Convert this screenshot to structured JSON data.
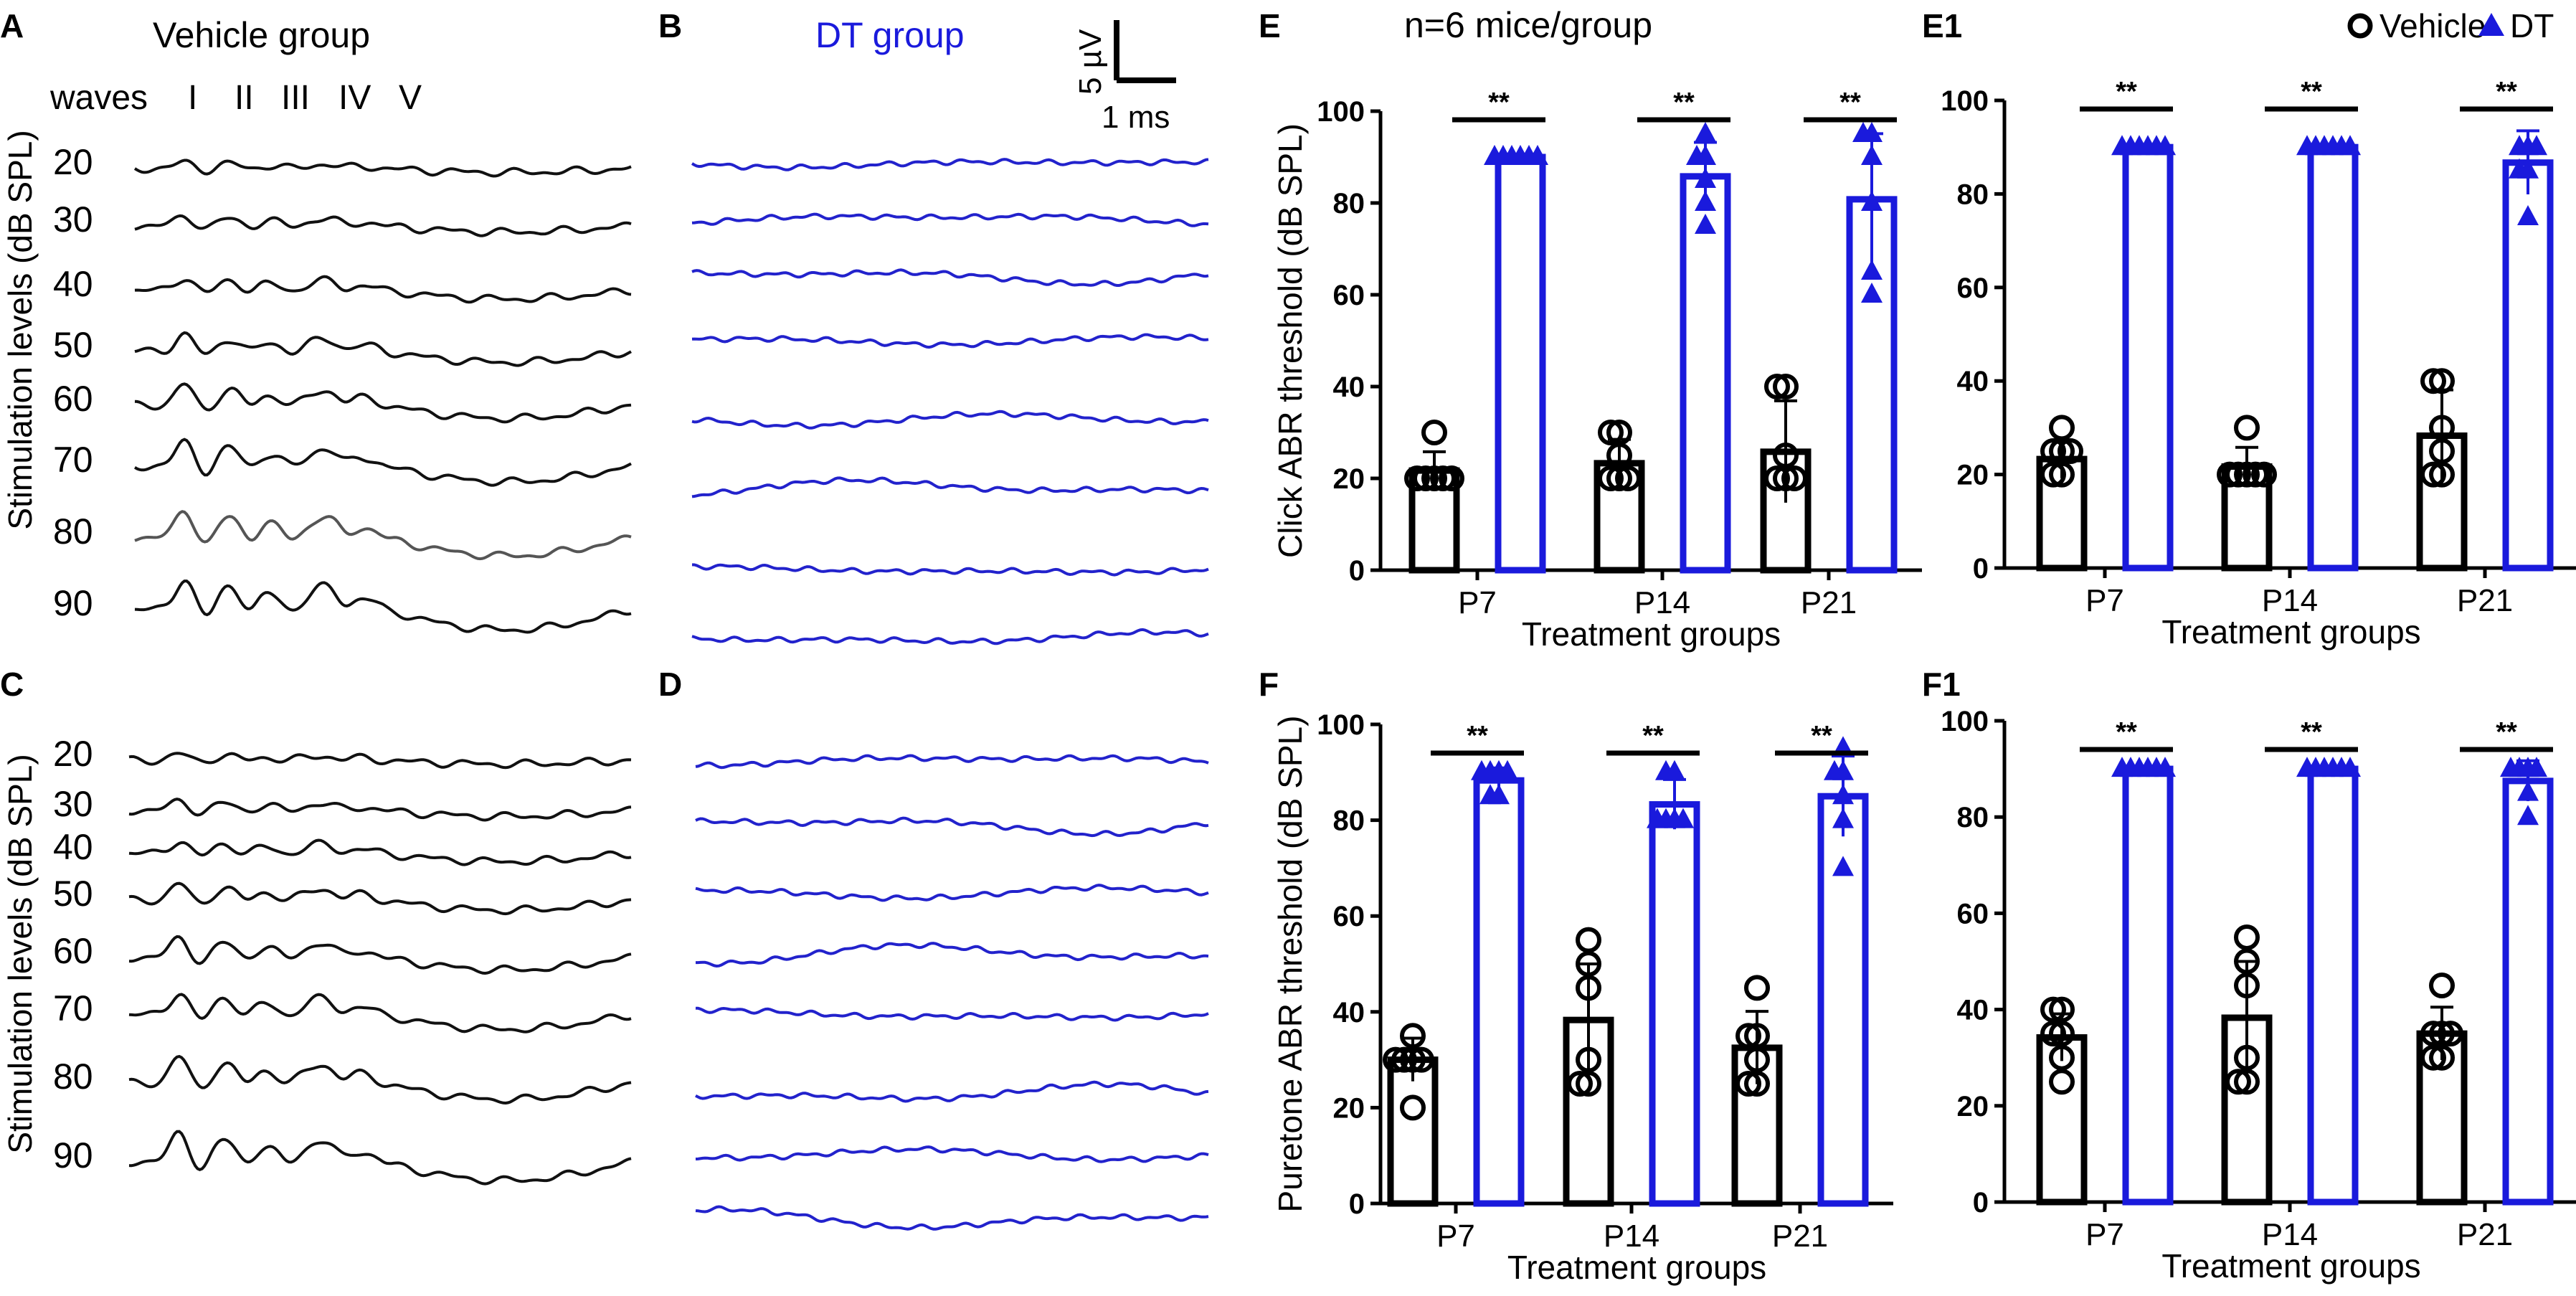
{
  "panel_labels": {
    "A": "A",
    "B": "B",
    "C": "C",
    "D": "D",
    "E": "E",
    "E1": "E1",
    "F": "F",
    "F1": "F1"
  },
  "traces": {
    "vehicle_title": "Vehicle group",
    "dt_title": "DT group",
    "waves_label": "waves",
    "waves": [
      "I",
      "II",
      "III",
      "IV",
      "V"
    ],
    "levels": [
      "20",
      "30",
      "40",
      "50",
      "60",
      "70",
      "80",
      "90"
    ],
    "ylabel": "Stimulation levels (dB SPL)",
    "scale_voltage": "5 µV",
    "scale_time": "1 ms"
  },
  "header": {
    "n_label": "n=6 mice/group"
  },
  "legend": {
    "vehicle": "Vehicle",
    "dt": "DT"
  },
  "colors": {
    "vehicle": "#000000",
    "dt": "#1a1adc",
    "trace_vehicle": "#111111",
    "trace_vehicle_80": "#555555",
    "trace_dt": "#2222cc"
  },
  "chart_data": [
    {
      "id": "E",
      "type": "bar",
      "ylabel": "Click ABR threshold (dB SPL)",
      "xlabel": "Treatment groups",
      "categories": [
        "P7",
        "P14",
        "P21"
      ],
      "ylim": [
        0,
        100
      ],
      "yticks": [
        0,
        20,
        40,
        60,
        80,
        100
      ],
      "significance": [
        "**",
        "**",
        "**"
      ],
      "series": [
        {
          "name": "Vehicle",
          "values": [
            21.7,
            23.3,
            25.8
          ],
          "sd": [
            4.1,
            5.2,
            11.1
          ],
          "points": [
            [
              20,
              20,
              20,
              20,
              20,
              30
            ],
            [
              20,
              20,
              20,
              25,
              30,
              30
            ],
            [
              20,
              20,
              20,
              25,
              40,
              40
            ]
          ]
        },
        {
          "name": "DT",
          "values": [
            90,
            85.8,
            80.8
          ],
          "sd": [
            0,
            7.4,
            14.3
          ],
          "points": [
            [
              90,
              90,
              90,
              90,
              90,
              90
            ],
            [
              75,
              80,
              85,
              90,
              90,
              95
            ],
            [
              60,
              65,
              80,
              90,
              95,
              95
            ]
          ]
        }
      ]
    },
    {
      "id": "E1",
      "type": "bar",
      "ylabel": "",
      "xlabel": "Treatment groups",
      "categories": [
        "P7",
        "P14",
        "P21"
      ],
      "ylim": [
        0,
        100
      ],
      "yticks": [
        0,
        20,
        40,
        60,
        80,
        100
      ],
      "significance": [
        "**",
        "**",
        "**"
      ],
      "series": [
        {
          "name": "Vehicle",
          "values": [
            23.3,
            21.7,
            28.3
          ],
          "sd": [
            4.1,
            4.1,
            9.8
          ],
          "points": [
            [
              20,
              20,
              25,
              25,
              25,
              30
            ],
            [
              20,
              20,
              20,
              20,
              20,
              30
            ],
            [
              20,
              20,
              25,
              30,
              40,
              40
            ]
          ]
        },
        {
          "name": "DT",
          "values": [
            90,
            90,
            86.7
          ],
          "sd": [
            0,
            0,
            6.8
          ],
          "points": [
            [
              90,
              90,
              90,
              90,
              90,
              90
            ],
            [
              90,
              90,
              90,
              90,
              90,
              90
            ],
            [
              75,
              85,
              85,
              90,
              90,
              90
            ]
          ]
        }
      ]
    },
    {
      "id": "F",
      "type": "bar",
      "ylabel": "Puretone ABR threshold (dB SPL)",
      "xlabel": "Treatment groups",
      "categories": [
        "P7",
        "P14",
        "P21"
      ],
      "ylim": [
        0,
        100
      ],
      "yticks": [
        0,
        20,
        40,
        60,
        80,
        100
      ],
      "significance": [
        "**",
        "**",
        "**"
      ],
      "series": [
        {
          "name": "Vehicle",
          "values": [
            30,
            38.3,
            32.5
          ],
          "sd": [
            4.5,
            11.7,
            7.6
          ],
          "points": [
            [
              20,
              30,
              30,
              30,
              30,
              35
            ],
            [
              25,
              25,
              30,
              45,
              50,
              55
            ],
            [
              25,
              25,
              30,
              35,
              35,
              45
            ]
          ]
        },
        {
          "name": "DT",
          "values": [
            88.3,
            83.3,
            85
          ],
          "sd": [
            2.6,
            5.2,
            8.4
          ],
          "points": [
            [
              85,
              85,
              90,
              90,
              90,
              90
            ],
            [
              80,
              80,
              80,
              80,
              90,
              90
            ],
            [
              70,
              80,
              85,
              90,
              90,
              95
            ]
          ]
        }
      ]
    },
    {
      "id": "F1",
      "type": "bar",
      "ylabel": "",
      "xlabel": "Treatment groups",
      "categories": [
        "P7",
        "P14",
        "P21"
      ],
      "ylim": [
        0,
        100
      ],
      "yticks": [
        0,
        20,
        40,
        60,
        80,
        100
      ],
      "significance": [
        "**",
        "**",
        "**"
      ],
      "series": [
        {
          "name": "Vehicle",
          "values": [
            34.2,
            38.3,
            35
          ],
          "sd": [
            4.9,
            11.7,
            5.5
          ],
          "points": [
            [
              25,
              30,
              35,
              35,
              40,
              40
            ],
            [
              25,
              25,
              30,
              45,
              50,
              55
            ],
            [
              30,
              30,
              35,
              35,
              35,
              45
            ]
          ]
        },
        {
          "name": "DT",
          "values": [
            90,
            90,
            87.5
          ],
          "sd": [
            0,
            0,
            4.2
          ],
          "points": [
            [
              90,
              90,
              90,
              90,
              90,
              90
            ],
            [
              90,
              90,
              90,
              90,
              90,
              90
            ],
            [
              80,
              85,
              90,
              90,
              90,
              90
            ]
          ]
        }
      ]
    }
  ]
}
